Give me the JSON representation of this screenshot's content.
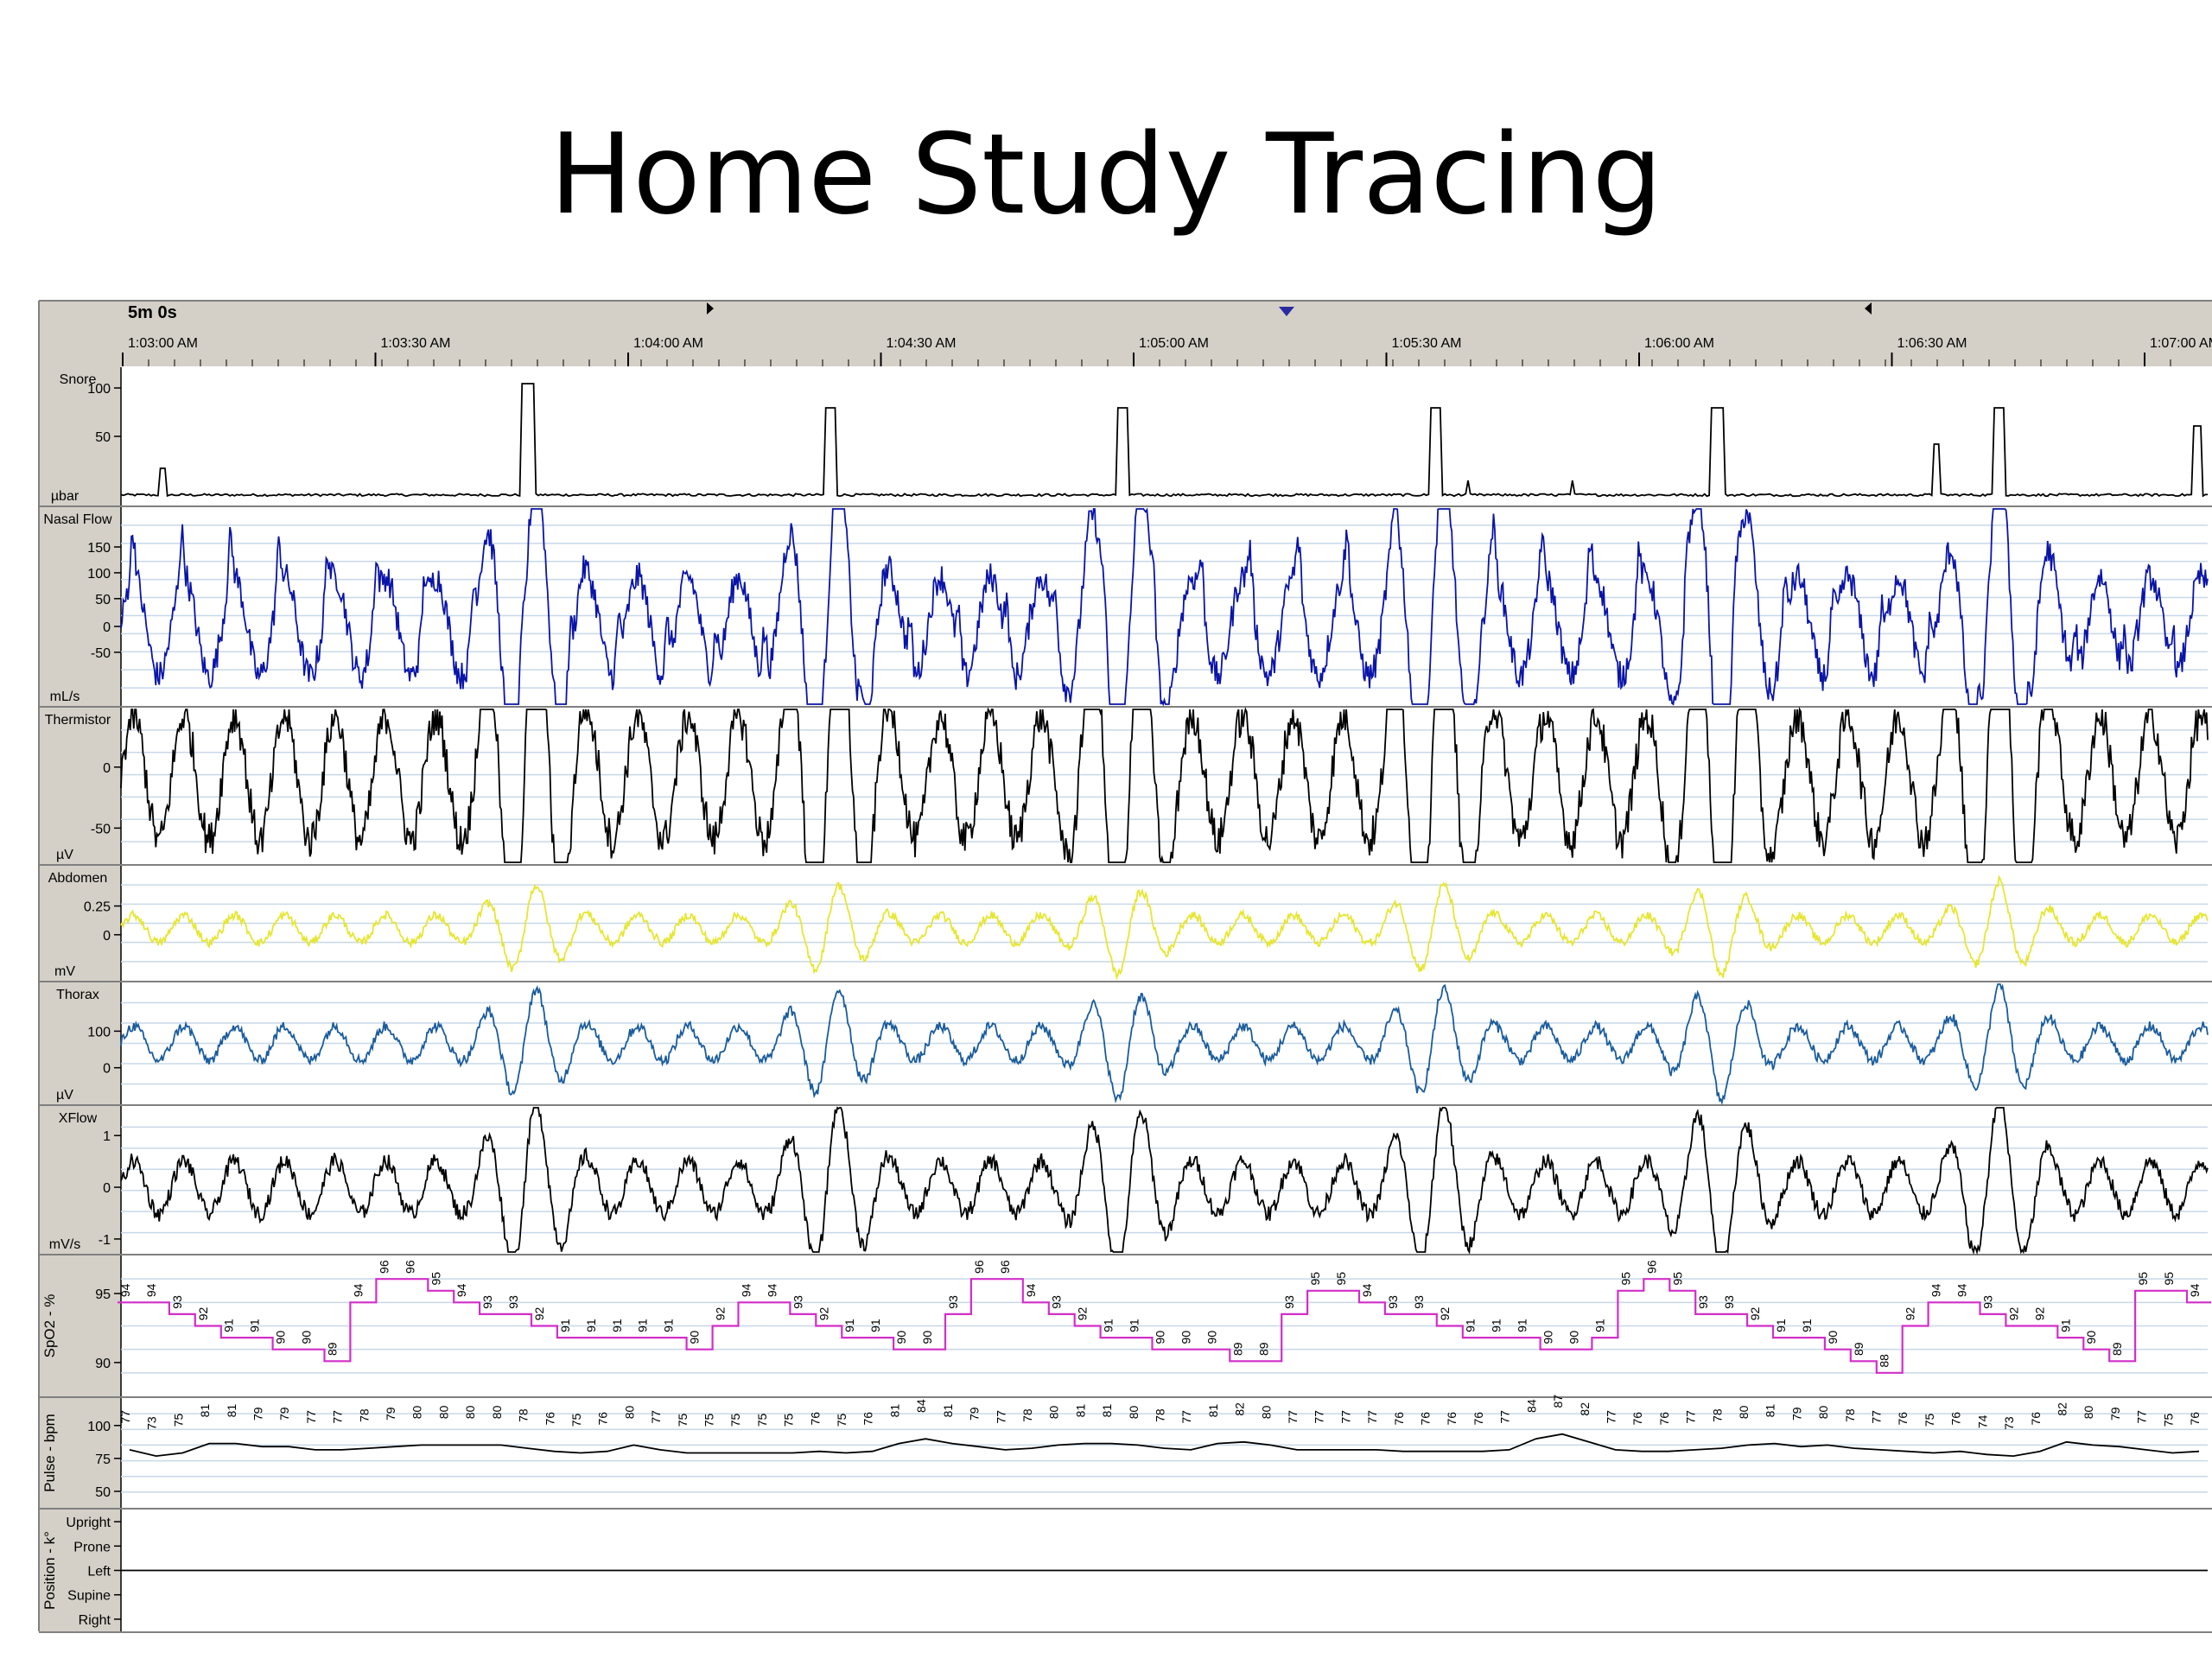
{
  "title": "Home Study Tracing",
  "header": {
    "duration": "5m 0s",
    "times": [
      "1:03:00 AM",
      "1:03:30 AM",
      "1:04:00 AM",
      "1:04:30 AM",
      "1:05:00 AM",
      "1:05:30 AM",
      "1:06:00 AM",
      "1:06:30 AM",
      "1:07:00 AM"
    ]
  },
  "colors": {
    "snore": "#000000",
    "nasal_flow": "#0a14a8",
    "thermistor": "#000000",
    "abdomen": "#e6e632",
    "thorax": "#1a5c9c",
    "xflow": "#000000",
    "spo2": "#d22ec8",
    "pulse": "#000000",
    "position": "#000000",
    "panel_bg": "#d4d0c8"
  },
  "chart_data": {
    "type": "line",
    "x": {
      "start": "1:03:00 AM",
      "end": "1:07:00 AM"
    },
    "channels": [
      {
        "key": "snore",
        "name": "Snore",
        "unit": "µbar",
        "ticks": [
          "100",
          "50"
        ]
      },
      {
        "key": "nasal_flow",
        "name": "Nasal Flow",
        "unit": "mL/s",
        "ticks": [
          "150",
          "100",
          "50",
          "0",
          "-50"
        ]
      },
      {
        "key": "thermistor",
        "name": "Thermistor",
        "unit": "µV",
        "ticks": [
          "0",
          "-50"
        ]
      },
      {
        "key": "abdomen",
        "name": "Abdomen",
        "unit": "mV",
        "ticks": [
          "0.25",
          "0"
        ]
      },
      {
        "key": "thorax",
        "name": "Thorax",
        "unit": "µV",
        "ticks": [
          "100",
          "0"
        ]
      },
      {
        "key": "xflow",
        "name": "XFlow",
        "unit": "mV/s",
        "ticks": [
          "1",
          "0",
          "-1"
        ]
      },
      {
        "key": "spo2",
        "name": "SpO2 - %",
        "unit": "",
        "ticks": [
          "95",
          "90"
        ]
      },
      {
        "key": "pulse",
        "name": "Pulse - bpm",
        "unit": "",
        "ticks": [
          "100",
          "75",
          "50"
        ]
      },
      {
        "key": "position",
        "name": "Position - k°",
        "unit": "",
        "ticks": [
          "Upright",
          "Prone",
          "Left",
          "Supine",
          "Right"
        ]
      }
    ],
    "spo2_values": [
      94,
      94,
      93,
      92,
      91,
      91,
      90,
      90,
      89,
      94,
      96,
      96,
      95,
      94,
      93,
      93,
      92,
      91,
      91,
      91,
      91,
      91,
      90,
      92,
      94,
      94,
      93,
      92,
      91,
      91,
      90,
      90,
      93,
      96,
      96,
      94,
      93,
      92,
      91,
      91,
      90,
      90,
      90,
      89,
      89,
      93,
      95,
      95,
      94,
      93,
      93,
      92,
      91,
      91,
      91,
      90,
      90,
      91,
      95,
      96,
      95,
      93,
      93,
      92,
      91,
      91,
      90,
      89,
      88,
      92,
      94,
      94,
      93,
      92,
      92,
      91,
      90,
      89,
      95,
      95,
      94
    ],
    "pulse_values": [
      77,
      73,
      75,
      81,
      81,
      79,
      79,
      77,
      77,
      78,
      79,
      80,
      80,
      80,
      80,
      78,
      76,
      75,
      76,
      80,
      77,
      75,
      75,
      75,
      75,
      75,
      76,
      75,
      76,
      81,
      84,
      81,
      79,
      77,
      78,
      80,
      81,
      81,
      80,
      78,
      77,
      81,
      82,
      80,
      77,
      77,
      77,
      77,
      76,
      76,
      76,
      76,
      77,
      84,
      87,
      82,
      77,
      76,
      76,
      77,
      78,
      80,
      81,
      79,
      80,
      78,
      77,
      76,
      75,
      76,
      74,
      73,
      76,
      82,
      80,
      79,
      77,
      75,
      76
    ],
    "position": "Left"
  }
}
